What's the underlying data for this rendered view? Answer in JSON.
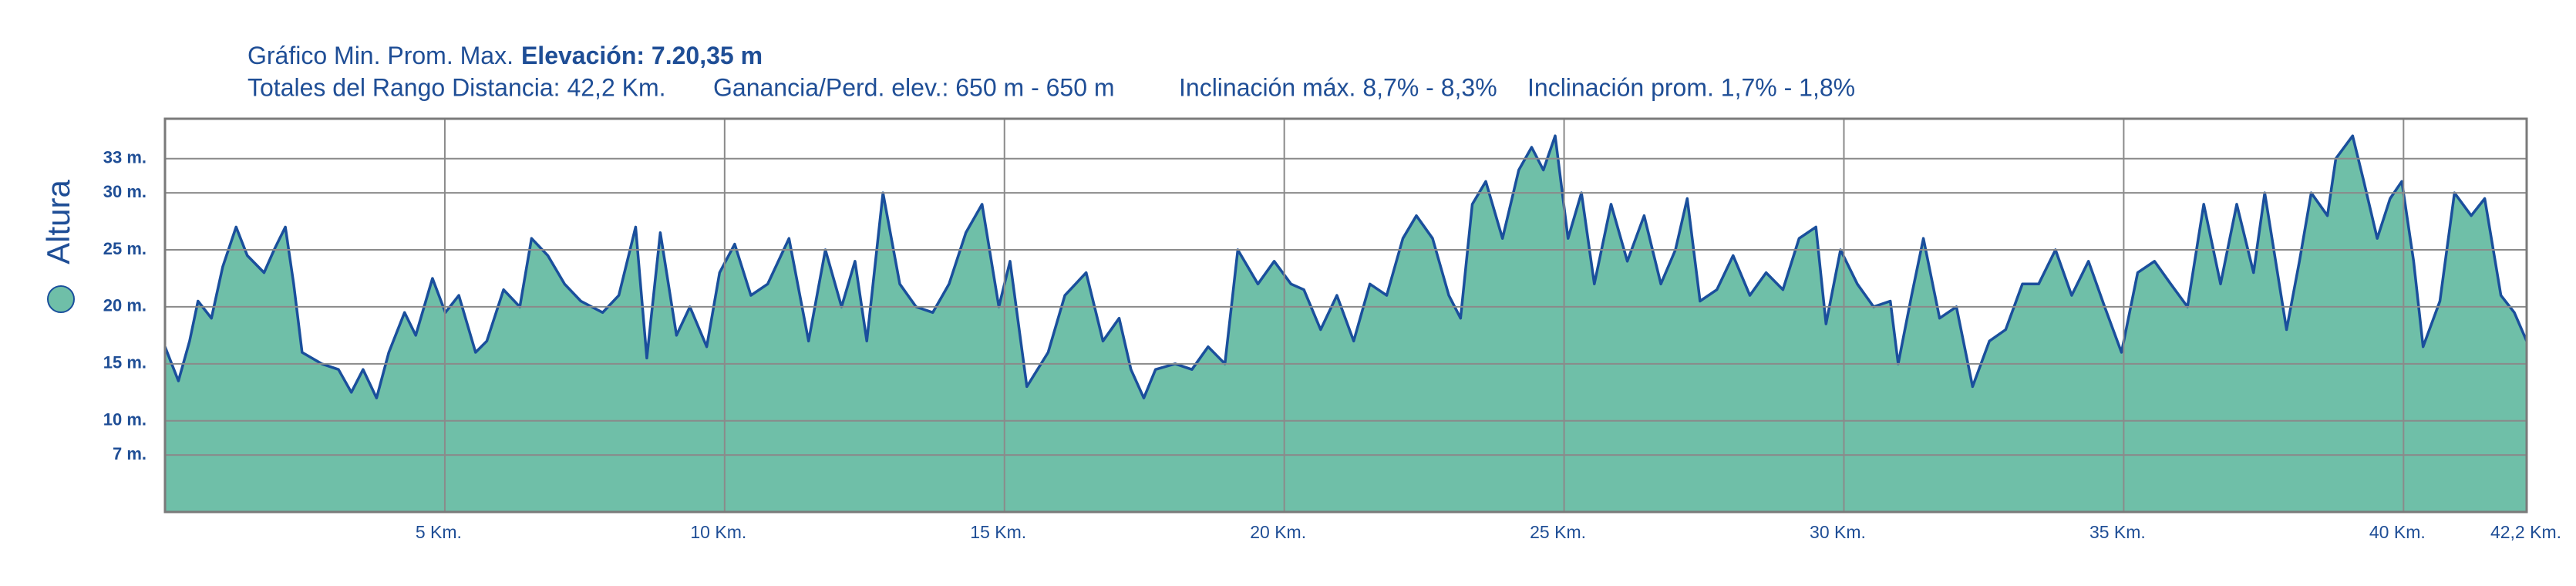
{
  "chart_data": {
    "type": "area",
    "title": "Gráfico Min. Prom. Max.",
    "title_bold": "Elevación: 7.20,35 m",
    "stats": [
      "Totales del Rango Distancia: 42,2 Km.",
      "Ganancia/Perd. elev.: 650 m - 650 m",
      "Inclinación máx. 8,7% - 8,3%",
      "Inclinación prom. 1,7% - 1,8%"
    ],
    "y_label": "Altura",
    "x": [
      0,
      0.24,
      0.44,
      0.59,
      0.83,
      1.03,
      1.27,
      1.47,
      1.77,
      1.95,
      2.15,
      2.3,
      2.45,
      2.8,
      3.1,
      3.33,
      3.54,
      3.78,
      4.0,
      4.28,
      4.48,
      4.78,
      5.01,
      5.25,
      5.55,
      5.75,
      6.05,
      6.34,
      6.55,
      6.84,
      7.14,
      7.43,
      7.82,
      8.11,
      8.41,
      8.61,
      8.85,
      9.14,
      9.38,
      9.68,
      9.91,
      10.18,
      10.47,
      10.77,
      11.15,
      11.5,
      11.8,
      12.09,
      12.33,
      12.54,
      12.83,
      13.13,
      13.42,
      13.72,
      14.01,
      14.31,
      14.6,
      14.9,
      15.1,
      15.4,
      15.78,
      16.08,
      16.46,
      16.76,
      17.05,
      17.26,
      17.49,
      17.7,
      18.05,
      18.35,
      18.64,
      18.94,
      19.17,
      19.53,
      19.82,
      20.12,
      20.35,
      20.65,
      20.94,
      21.24,
      21.53,
      21.83,
      22.12,
      22.36,
      22.65,
      22.94,
      23.15,
      23.36,
      23.6,
      23.9,
      24.19,
      24.42,
      24.63,
      24.84,
      25.07,
      25.31,
      25.54,
      25.84,
      26.13,
      26.43,
      26.73,
      26.99,
      27.2,
      27.43,
      27.73,
      28.02,
      28.32,
      28.61,
      28.91,
      29.2,
      29.5,
      29.68,
      29.94,
      30.24,
      30.53,
      30.83,
      30.97,
      31.21,
      31.42,
      31.71,
      32.01,
      32.3,
      32.6,
      32.89,
      33.19,
      33.48,
      33.78,
      34.07,
      34.37,
      34.66,
      34.96,
      35.25,
      35.55,
      35.84,
      36.14,
      36.43,
      36.73,
      37.02,
      37.32,
      37.52,
      37.91,
      38.14,
      38.35,
      38.64,
      38.79,
      39.09,
      39.29,
      39.53,
      39.76,
      39.97,
      40.18,
      40.35,
      40.65,
      40.91,
      41.21,
      41.45,
      41.74,
      41.98,
      42.2
    ],
    "series": [
      {
        "name": "Altura",
        "color": "#6fbfa8",
        "line_color": "#1a4f9c",
        "values": [
          16.5,
          13.5,
          17,
          20.5,
          19,
          23.5,
          27,
          24.5,
          23,
          25,
          27,
          22,
          16,
          15,
          14.5,
          12.5,
          14.5,
          12,
          16,
          19.5,
          17.5,
          22.5,
          19.5,
          21,
          16,
          17,
          21.5,
          20,
          26,
          24.5,
          22,
          20.5,
          19.5,
          21,
          27,
          15.5,
          26.5,
          17.5,
          20,
          16.5,
          23,
          25.5,
          21,
          22,
          26,
          17,
          25,
          20,
          24,
          17,
          30,
          22,
          20,
          19.5,
          22,
          26.5,
          29,
          20,
          24,
          13,
          16,
          21,
          23,
          17,
          19,
          14.5,
          12,
          14.5,
          15,
          14.5,
          16.5,
          15,
          25,
          22,
          24,
          22,
          21.5,
          18,
          21,
          17,
          22,
          21,
          26,
          28,
          26,
          21,
          19,
          29,
          31,
          26,
          32,
          34,
          32,
          35,
          26,
          30,
          22,
          29,
          24,
          28,
          22,
          25,
          29.5,
          20.5,
          21.5,
          24.5,
          21,
          23,
          21.5,
          26,
          27,
          18.5,
          25,
          22,
          20,
          20.5,
          15,
          21,
          26,
          19,
          20,
          13,
          17,
          18,
          22,
          22,
          25,
          21,
          24,
          20,
          16,
          23,
          24,
          22,
          20,
          29,
          22,
          29,
          23,
          30,
          18,
          24,
          30,
          28,
          33,
          35,
          31,
          26,
          29.5,
          31,
          24,
          16.5,
          20.5,
          30,
          28,
          29.5,
          21,
          19.5,
          17
        ]
      }
    ],
    "xlim": [
      0,
      42.2
    ],
    "ylim": [
      2,
      36.5
    ],
    "xticks": [
      {
        "value": 5,
        "label": "5 Km."
      },
      {
        "value": 10,
        "label": "10 Km."
      },
      {
        "value": 15,
        "label": "15 Km."
      },
      {
        "value": 20,
        "label": "20 Km."
      },
      {
        "value": 25,
        "label": "25 Km."
      },
      {
        "value": 30,
        "label": "30 Km."
      },
      {
        "value": 35,
        "label": "35 Km."
      },
      {
        "value": 40,
        "label": "40 Km."
      },
      {
        "value": 42.2,
        "label": "42,2 Km."
      }
    ],
    "yticks": [
      {
        "value": 7,
        "label": "7 m."
      },
      {
        "value": 10,
        "label": "10 m."
      },
      {
        "value": 15,
        "label": "15 m."
      },
      {
        "value": 20,
        "label": "20 m."
      },
      {
        "value": 25,
        "label": "25 m."
      },
      {
        "value": 30,
        "label": "30 m."
      },
      {
        "value": 33,
        "label": "33 m."
      }
    ],
    "grid": true
  }
}
